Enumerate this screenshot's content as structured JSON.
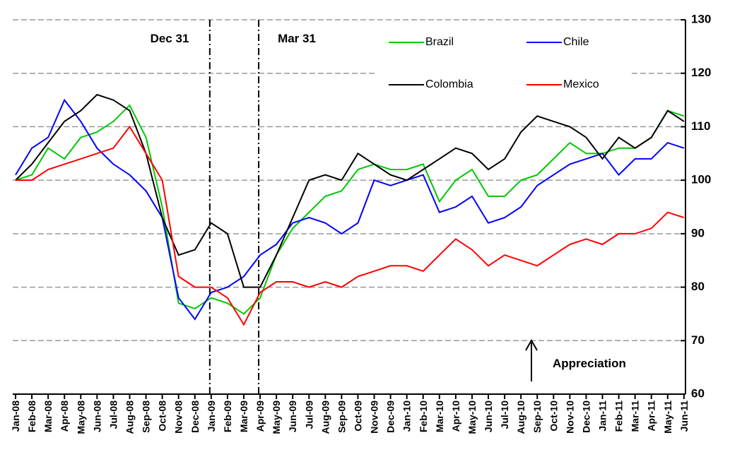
{
  "chart_data": {
    "type": "line",
    "categories": [
      "Jan-08",
      "Feb-08",
      "Mar-08",
      "Apr-08",
      "May-08",
      "Jun-08",
      "Jul-08",
      "Aug-08",
      "Sep-08",
      "Oct-08",
      "Nov-08",
      "Dec-08",
      "Jan-09",
      "Feb-09",
      "Mar-09",
      "Apr-09",
      "May-09",
      "Jun-09",
      "Jul-09",
      "Aug-09",
      "Sep-09",
      "Oct-09",
      "Nov-09",
      "Dec-09",
      "Jan-10",
      "Feb-10",
      "Mar-10",
      "Apr-10",
      "May-10",
      "Jun-10",
      "Jul-10",
      "Aug-10",
      "Sep-10",
      "Oct-10",
      "Nov-10",
      "Dec-10",
      "Jan-11",
      "Feb-11",
      "Mar-11",
      "Apr-11",
      "May-11",
      "Jun-11"
    ],
    "series": [
      {
        "name": "Brazil",
        "color": "#00c800",
        "values": [
          100,
          101,
          106,
          104,
          108,
          109,
          111,
          114,
          108,
          95,
          77,
          76,
          78,
          77,
          75,
          78,
          86,
          91,
          94,
          97,
          98,
          102,
          103,
          102,
          102,
          103,
          96,
          100,
          102,
          97,
          97,
          100,
          101,
          104,
          107,
          105,
          105,
          106,
          106,
          108,
          113,
          112
        ]
      },
      {
        "name": "Chile",
        "color": "#0000ff",
        "values": [
          101,
          106,
          108,
          115,
          111,
          106,
          103,
          101,
          98,
          93,
          78,
          74,
          79,
          80,
          82,
          86,
          88,
          92,
          93,
          92,
          90,
          92,
          100,
          99,
          100,
          101,
          94,
          95,
          97,
          92,
          93,
          95,
          99,
          101,
          103,
          104,
          105,
          101,
          104,
          104,
          107,
          106
        ]
      },
      {
        "name": "Colombia",
        "color": "#000000",
        "values": [
          100,
          103,
          107,
          111,
          113,
          116,
          115,
          113,
          105,
          93,
          86,
          87,
          92,
          90,
          80,
          80,
          86,
          93,
          100,
          101,
          100,
          105,
          103,
          101,
          100,
          102,
          104,
          106,
          105,
          102,
          104,
          109,
          112,
          111,
          110,
          108,
          104,
          108,
          106,
          108,
          113,
          111
        ]
      },
      {
        "name": "Mexico",
        "color": "#ff0000",
        "values": [
          100,
          100,
          102,
          103,
          104,
          105,
          106,
          110,
          105,
          100,
          82,
          80,
          80,
          78,
          73,
          79,
          81,
          81,
          80,
          81,
          80,
          82,
          83,
          84,
          84,
          83,
          86,
          89,
          87,
          84,
          86,
          85,
          84,
          86,
          88,
          89,
          88,
          90,
          90,
          91,
          94,
          93
        ]
      }
    ],
    "annotations": [
      "Dec 31",
      "Mar 31",
      "Appreciation"
    ],
    "ylim": [
      60,
      130
    ],
    "yticks": [
      60,
      70,
      80,
      90,
      100,
      110,
      120,
      130
    ],
    "grid": true,
    "y_axis_side": "right"
  }
}
